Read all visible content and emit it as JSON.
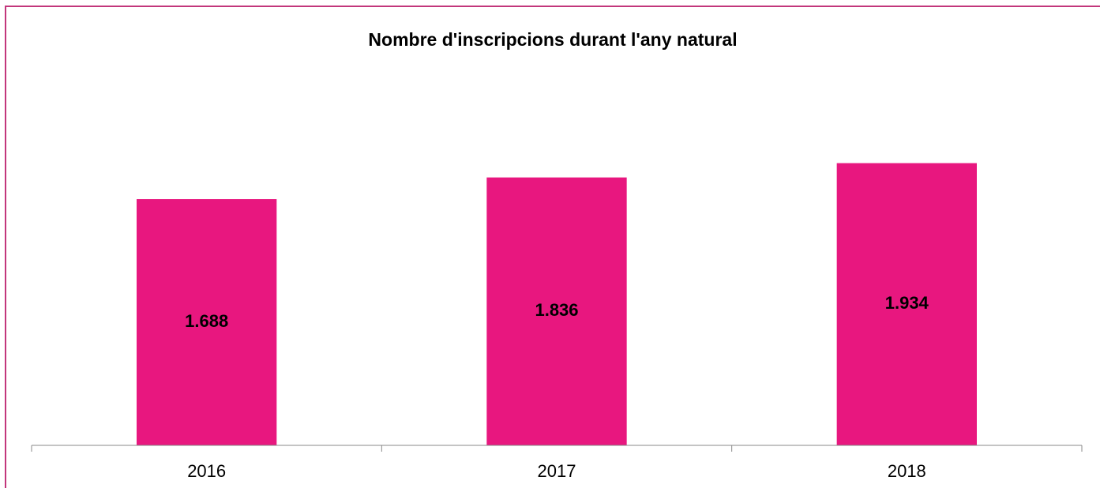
{
  "chart_data": {
    "type": "bar",
    "title": "Nombre d'inscripcions durant l'any natural",
    "categories": [
      "2016",
      "2017",
      "2018"
    ],
    "values": [
      1688,
      1836,
      1934
    ],
    "value_labels": [
      "1.688",
      "1.836",
      "1.934"
    ],
    "color": "#e8177f",
    "ylim": [
      0,
      2500
    ]
  }
}
